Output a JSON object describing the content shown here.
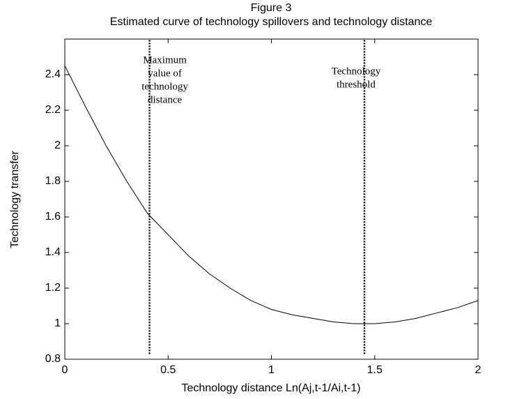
{
  "chart_data": {
    "type": "line",
    "title": "Figure 3",
    "subtitle": "Estimated curve of technology spillovers and technology distance",
    "x_label": "Technology distance Ln(Aj,t-1/Ai,t-1)",
    "y_label": "Technology transfer",
    "xlim": [
      0,
      2
    ],
    "xticks": [
      0,
      0.5,
      1,
      1.5,
      2
    ],
    "ylim": [
      0.8,
      2.6
    ],
    "yticks": [
      0.8,
      1,
      1.2,
      1.4,
      1.6,
      1.8,
      2,
      2.2,
      2.4
    ],
    "x": [
      0,
      0.1,
      0.2,
      0.3,
      0.4,
      0.5,
      0.6,
      0.7,
      0.8,
      0.9,
      1.0,
      1.1,
      1.2,
      1.3,
      1.4,
      1.5,
      1.6,
      1.7,
      1.8,
      1.9,
      2.0
    ],
    "series": [
      {
        "color": "#000000",
        "values": [
          2.45,
          2.22,
          2.0,
          1.8,
          1.62,
          1.5,
          1.38,
          1.28,
          1.2,
          1.13,
          1.08,
          1.05,
          1.03,
          1.01,
          1.0,
          1.0,
          1.01,
          1.03,
          1.06,
          1.09,
          1.13
        ]
      }
    ],
    "annotations": [
      {
        "x": 0.41,
        "y_from": 0.83,
        "lines": [
          "Maximum",
          "value of",
          "technology",
          "distance"
        ]
      },
      {
        "x": 1.45,
        "y_from": 0.83,
        "lines": [
          "Technology",
          "threshold"
        ]
      }
    ]
  }
}
